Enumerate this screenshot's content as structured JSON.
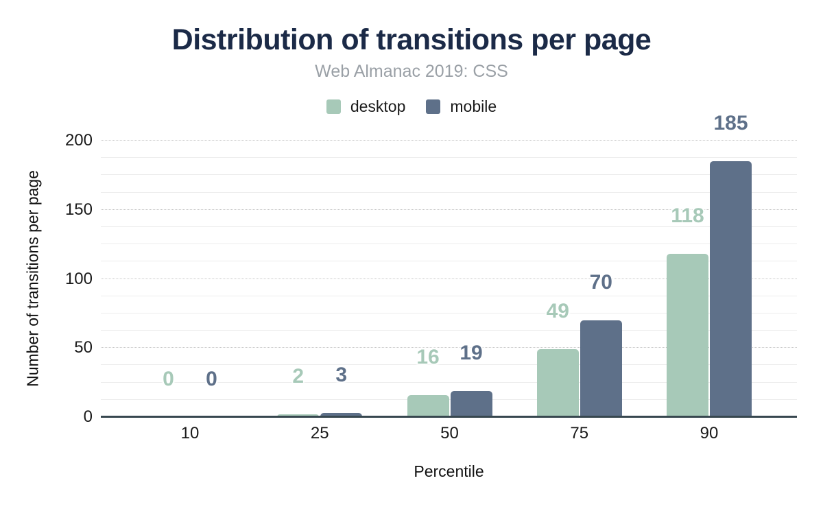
{
  "chart_data": {
    "type": "bar",
    "title": "Distribution of transitions per page",
    "subtitle": "Web Almanac 2019: CSS",
    "categories": [
      "10",
      "25",
      "50",
      "75",
      "90"
    ],
    "series": [
      {
        "name": "desktop",
        "color": "#a7c9b8",
        "values": [
          0,
          2,
          16,
          49,
          118
        ]
      },
      {
        "name": "mobile",
        "color": "#5e7089",
        "values": [
          0,
          3,
          19,
          70,
          185
        ]
      }
    ],
    "xlabel": "Percentile",
    "ylabel": "Number of transitions per page",
    "ylim": [
      0,
      200
    ],
    "yticks": [
      0,
      50,
      100,
      150,
      200
    ],
    "minor_grid_step": 12.5,
    "grid": true,
    "legend_position": "top",
    "data_labels": true
  },
  "colors": {
    "title": "#1b2a47",
    "subtitle": "#9aa0a6",
    "axis_text": "#1a1a1a",
    "baseline": "#37474f",
    "major_grid": "#c6c6c6",
    "minor_grid": "#ececec",
    "background": "#ffffff"
  }
}
